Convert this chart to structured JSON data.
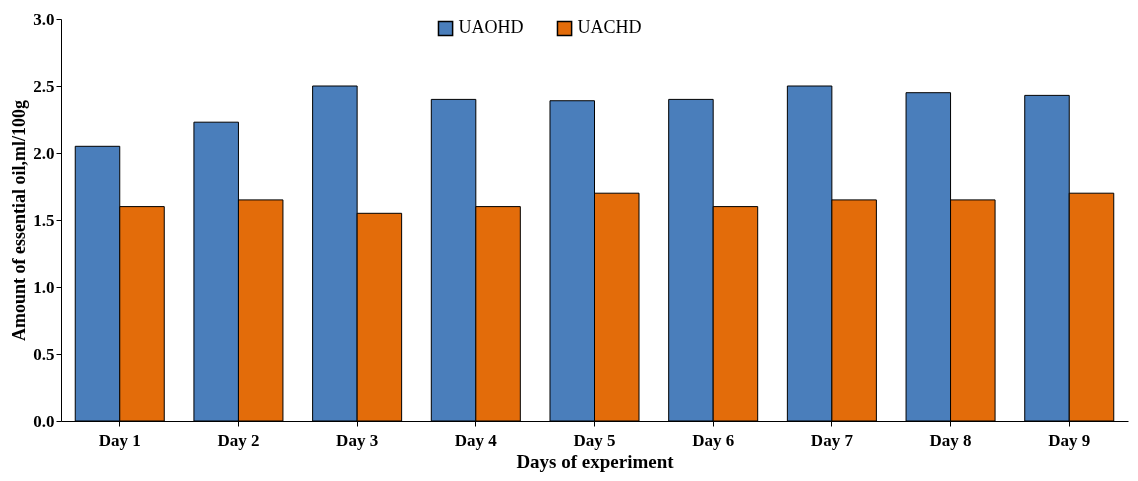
{
  "chart_data": {
    "type": "bar",
    "xlabel": "Days  of experiment",
    "ylabel": "Amount of essential oil,ml/100g",
    "categories": [
      "Day 1",
      "Day 2",
      "Day 3",
      "Day 4",
      "Day 5",
      "Day 6",
      "Day 7",
      "Day 8",
      "Day 9"
    ],
    "series": [
      {
        "name": "UAOHD",
        "color": "#4a7ebb",
        "values": [
          2.05,
          2.23,
          2.5,
          2.4,
          2.39,
          2.4,
          2.5,
          2.45,
          2.43
        ]
      },
      {
        "name": "UACHD",
        "color": "#e36c0a",
        "values": [
          1.6,
          1.65,
          1.55,
          1.6,
          1.7,
          1.6,
          1.65,
          1.65,
          1.7
        ]
      }
    ],
    "ylim": [
      0,
      3
    ],
    "yticks": [
      {
        "value": 0,
        "label": "0.0"
      },
      {
        "value": 0.5,
        "label": "0.5"
      },
      {
        "value": 1,
        "label": "1.0"
      },
      {
        "value": 1.5,
        "label": "1.5"
      },
      {
        "value": 2,
        "label": "2.0"
      },
      {
        "value": 2.5,
        "label": "2.5"
      },
      {
        "value": 3,
        "label": "3.0"
      }
    ],
    "grid": false,
    "legend": "top"
  }
}
